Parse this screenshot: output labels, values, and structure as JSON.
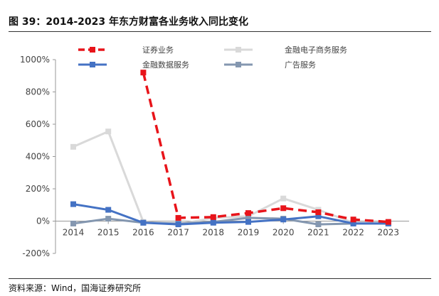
{
  "title": "图 39：2014-2023 年东方财富各业务收入同比变化",
  "source": "资料来源：Wind，国海证券研究所",
  "chart_data": {
    "type": "line",
    "title": "2014-2023 年东方财富各业务收入同比变化",
    "x": [
      "2014",
      "2015",
      "2016",
      "2017",
      "2018",
      "2019",
      "2020",
      "2021",
      "2022",
      "2023"
    ],
    "ylim": [
      -200,
      1000
    ],
    "yticks": [
      -200,
      0,
      200,
      400,
      600,
      800,
      1000
    ],
    "ytick_labels": [
      "-200%",
      "0%",
      "200%",
      "400%",
      "600%",
      "800%",
      "1000%"
    ],
    "xlabel": "",
    "ylabel": "",
    "grid": false,
    "legend_position": "top",
    "series": [
      {
        "name": "证券业务",
        "color": "#e8141a",
        "dash": true,
        "values": [
          null,
          null,
          920,
          20,
          25,
          50,
          80,
          55,
          10,
          -5
        ]
      },
      {
        "name": "金融电子商务服务",
        "color": "#d9d9d9",
        "dash": false,
        "values": [
          460,
          555,
          -5,
          -20,
          20,
          30,
          140,
          70,
          -10,
          -10
        ]
      },
      {
        "name": "金融数据服务",
        "color": "#4472c4",
        "dash": false,
        "values": [
          105,
          70,
          -10,
          -20,
          -10,
          -5,
          10,
          30,
          -15,
          -15
        ]
      },
      {
        "name": "广告服务",
        "color": "#8497b0",
        "dash": false,
        "values": [
          -15,
          15,
          -10,
          -15,
          -5,
          20,
          15,
          -20,
          -15,
          -15
        ]
      }
    ]
  }
}
